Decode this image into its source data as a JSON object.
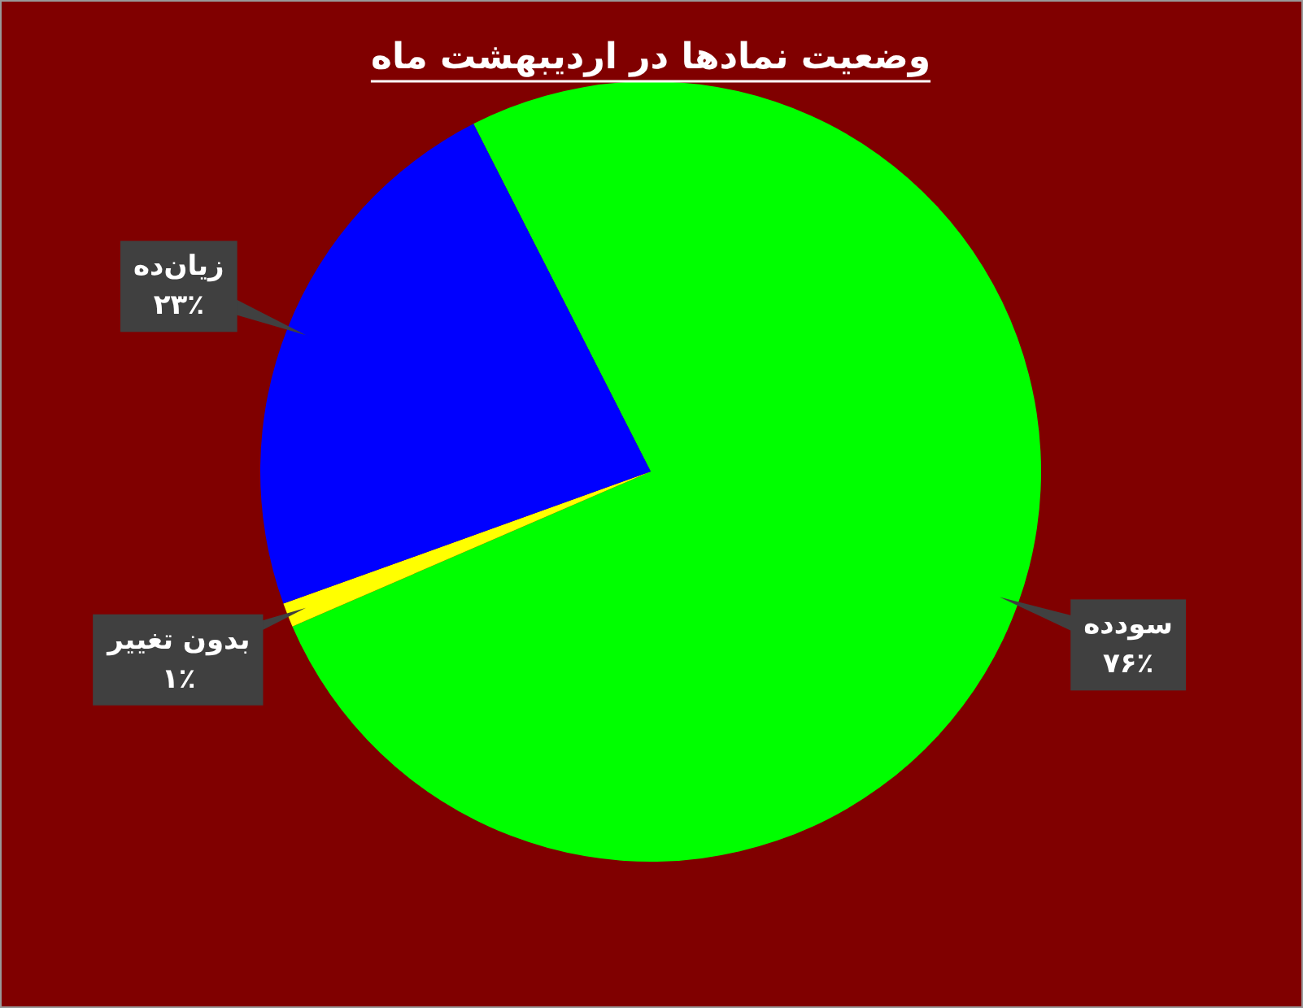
{
  "chart_data": {
    "type": "pie",
    "title": "وضعیت نمادها در اردیبهشت ماه",
    "categories": [
      "سودده",
      "بدون تغییر",
      "زیان‌ده"
    ],
    "values": [
      76,
      1,
      23
    ],
    "colors": [
      "#00ff00",
      "#ffff00",
      "#0000ff"
    ],
    "value_labels": [
      "۷۶٪",
      "۱٪",
      "۲۳٪"
    ]
  }
}
